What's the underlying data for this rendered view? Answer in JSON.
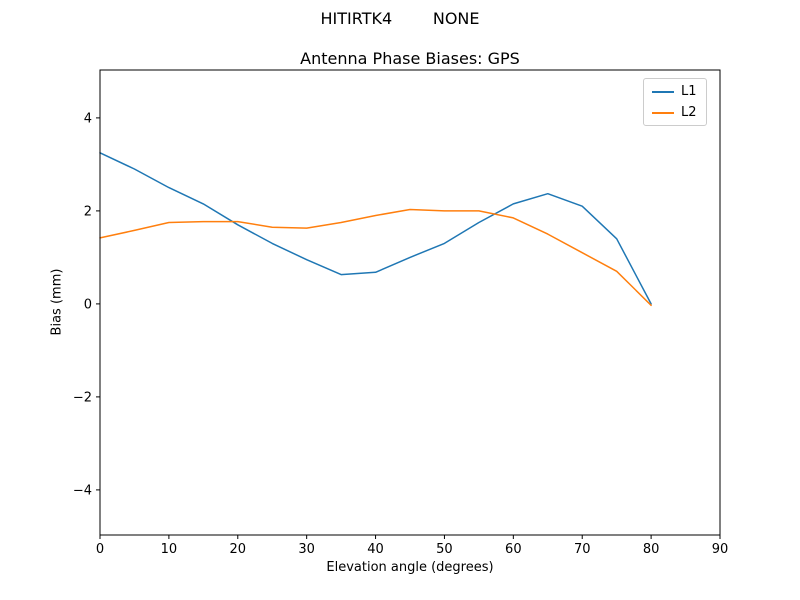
{
  "figure": {
    "suptitle": "HITIRTK4        NONE",
    "title": "Antenna Phase Biases: GPS"
  },
  "chart_data": {
    "type": "line",
    "suptitle": "HITIRTK4        NONE",
    "title": "Antenna Phase Biases: GPS",
    "xlabel": "Elevation angle (degrees)",
    "ylabel": "Bias (mm)",
    "xlim": [
      0,
      90
    ],
    "ylim": [
      -4.97,
      5.03
    ],
    "x_ticks": [
      0,
      10,
      20,
      30,
      40,
      50,
      60,
      70,
      80,
      90
    ],
    "y_ticks": [
      -4,
      -2,
      0,
      2,
      4
    ],
    "grid": false,
    "legend_position": "upper right",
    "x": [
      0,
      5,
      10,
      15,
      20,
      25,
      30,
      35,
      40,
      45,
      50,
      55,
      60,
      65,
      70,
      75,
      80
    ],
    "series": [
      {
        "name": "L1",
        "color": "#1f77b4",
        "values": [
          3.25,
          2.9,
          2.5,
          2.15,
          1.7,
          1.3,
          0.95,
          0.63,
          0.68,
          1.0,
          1.3,
          1.75,
          2.15,
          2.37,
          2.1,
          1.4,
          0.0
        ]
      },
      {
        "name": "L2",
        "color": "#ff7f0e",
        "values": [
          1.42,
          1.58,
          1.75,
          1.77,
          1.77,
          1.65,
          1.63,
          1.75,
          1.9,
          2.03,
          2.0,
          2.0,
          1.85,
          1.5,
          1.1,
          0.7,
          -0.03
        ]
      }
    ]
  }
}
